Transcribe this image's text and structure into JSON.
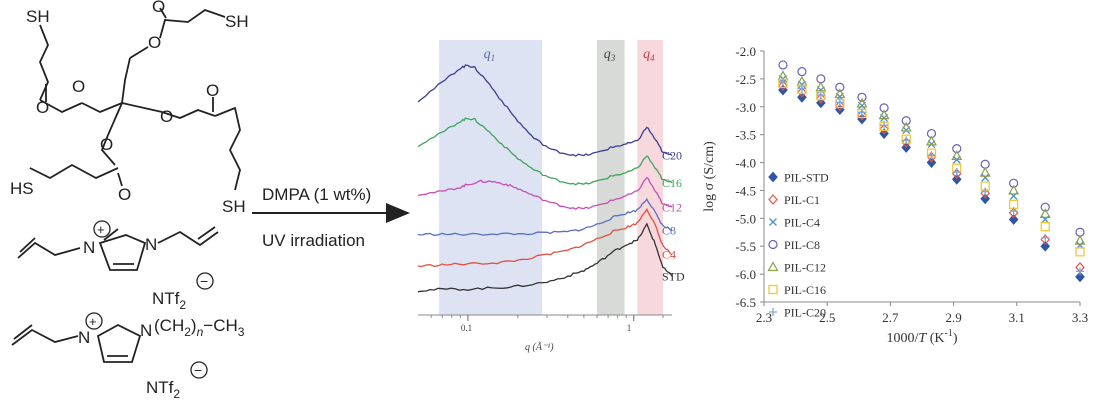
{
  "scheme": {
    "tetrathiol_labels": {
      "sh": "SH",
      "hs": "HS",
      "o": "O"
    },
    "monomer1": {
      "plus": "+",
      "n": "N",
      "counterion": "NTf",
      "counterion_sub": "2",
      "minus": "−"
    },
    "monomer2": {
      "plus": "+",
      "n": "N",
      "chain_a": "(CH",
      "chain_sub1": "2",
      "chain_b": ")",
      "chain_n": "n",
      "chain_c": "−CH",
      "chain_sub2": "3",
      "counterion": "NTf",
      "counterion_sub": "2",
      "minus": "−"
    },
    "arrow_top": "DMPA (1 wt%)",
    "arrow_bottom": "UV irradiation"
  },
  "chart_data": [
    {
      "type": "line",
      "title": "",
      "xlabel": "q (Å⁻¹)",
      "ylabel": "",
      "xscale": "log",
      "xlim": [
        0.05,
        1.7
      ],
      "xticks": [
        {
          "v": 0.1,
          "label": "0.1"
        },
        {
          "v": 1,
          "label": "1"
        }
      ],
      "bands": [
        {
          "name": "q1",
          "label": "q",
          "sub": "1",
          "from": 0.067,
          "to": 0.28,
          "color": "#dde3f3",
          "text": "#5b6aa8"
        },
        {
          "name": "q3",
          "label": "q",
          "sub": "3",
          "from": 0.6,
          "to": 0.88,
          "color": "#d7dad7",
          "text": "#444444"
        },
        {
          "name": "q4",
          "label": "q",
          "sub": "4",
          "from": 1.05,
          "to": 1.5,
          "color": "#f7d8dd",
          "text": "#c63b52"
        }
      ],
      "series": [
        {
          "name": "C20",
          "color": "#3b3f8f",
          "offset": 4.7,
          "x": [
            0.05,
            0.07,
            0.09,
            0.1,
            0.11,
            0.13,
            0.16,
            0.2,
            0.25,
            0.32,
            0.4,
            0.5,
            0.6,
            0.75,
            0.9,
            1.05,
            1.2,
            1.35,
            1.5,
            1.7
          ],
          "y": [
            1.9,
            2.55,
            3.05,
            3.15,
            3.05,
            2.6,
            1.9,
            1.2,
            0.6,
            0.2,
            0.05,
            0.0,
            0.1,
            0.3,
            0.4,
            0.5,
            1.0,
            0.55,
            0.1,
            0.0
          ]
        },
        {
          "name": "C16",
          "color": "#3ca65a",
          "offset": 3.75,
          "x": [
            0.05,
            0.07,
            0.09,
            0.1,
            0.11,
            0.13,
            0.16,
            0.2,
            0.25,
            0.32,
            0.4,
            0.5,
            0.6,
            0.75,
            0.9,
            1.05,
            1.2,
            1.35,
            1.5,
            1.7
          ],
          "y": [
            1.3,
            1.75,
            2.15,
            2.25,
            2.2,
            1.85,
            1.35,
            0.85,
            0.45,
            0.15,
            0.0,
            -0.05,
            0.05,
            0.25,
            0.35,
            0.5,
            0.95,
            0.5,
            0.1,
            0.0
          ]
        },
        {
          "name": "C12",
          "color": "#c54fb5",
          "offset": 2.85,
          "x": [
            0.05,
            0.07,
            0.09,
            0.1,
            0.12,
            0.14,
            0.17,
            0.2,
            0.25,
            0.32,
            0.4,
            0.5,
            0.6,
            0.75,
            0.9,
            1.05,
            1.2,
            1.35,
            1.5,
            1.7
          ],
          "y": [
            0.5,
            0.6,
            0.75,
            0.85,
            0.95,
            0.95,
            0.85,
            0.7,
            0.45,
            0.2,
            0.05,
            0.0,
            0.1,
            0.3,
            0.45,
            0.6,
            1.1,
            0.6,
            0.15,
            0.05
          ]
        },
        {
          "name": "C8",
          "color": "#5b6fc0",
          "offset": 1.95,
          "x": [
            0.05,
            0.07,
            0.1,
            0.15,
            0.2,
            0.3,
            0.4,
            0.5,
            0.6,
            0.75,
            0.9,
            1.05,
            1.2,
            1.35,
            1.5,
            1.7
          ],
          "y": [
            0.0,
            0.02,
            0.0,
            0.03,
            0.02,
            0.06,
            0.1,
            0.2,
            0.35,
            0.6,
            0.75,
            0.85,
            1.25,
            0.75,
            0.3,
            0.15
          ]
        },
        {
          "name": "C4",
          "color": "#e25041",
          "offset": 0.85,
          "x": [
            0.05,
            0.07,
            0.1,
            0.15,
            0.2,
            0.3,
            0.4,
            0.5,
            0.6,
            0.75,
            0.9,
            1.05,
            1.2,
            1.35,
            1.5,
            1.7
          ],
          "y": [
            0.0,
            0.05,
            0.08,
            0.12,
            0.2,
            0.4,
            0.55,
            0.75,
            0.95,
            1.2,
            1.35,
            1.5,
            2.0,
            1.4,
            0.7,
            0.4
          ]
        },
        {
          "name": "STD",
          "color": "#333333",
          "offset": 0.0,
          "x": [
            0.05,
            0.07,
            0.1,
            0.15,
            0.2,
            0.3,
            0.4,
            0.5,
            0.6,
            0.75,
            0.9,
            1.05,
            1.2,
            1.35,
            1.5,
            1.7
          ],
          "y": [
            0.0,
            0.05,
            0.05,
            0.1,
            0.15,
            0.3,
            0.5,
            0.7,
            0.95,
            1.35,
            1.6,
            1.75,
            2.3,
            1.6,
            0.8,
            0.5
          ]
        }
      ]
    },
    {
      "type": "scatter",
      "title": "",
      "xlabel_main": "1000/",
      "xlabel_italic": "T",
      "xlabel_unit": " (K",
      "xlabel_exp": "-1",
      "xlabel_close": ")",
      "ylabel": "log σ (S/cm)",
      "xlim": [
        2.3,
        3.3
      ],
      "ylim": [
        -6.5,
        -2.0
      ],
      "xticks": [
        "2.3",
        "2.5",
        "2.7",
        "2.9",
        "3.1",
        "3.3"
      ],
      "yticks": [
        "-2.0",
        "-2.5",
        "-3.0",
        "-3.5",
        "-4.0",
        "-4.5",
        "-5.0",
        "-5.5",
        "-6.0",
        "-6.5"
      ],
      "legend_position": "bottom-left",
      "x": [
        2.36,
        2.42,
        2.48,
        2.54,
        2.61,
        2.68,
        2.75,
        2.83,
        2.91,
        3.0,
        3.09,
        3.19,
        3.3
      ],
      "series": [
        {
          "name": "PIL-STD",
          "marker": "diamond",
          "color": "#2f55a4",
          "filled": true,
          "y": [
            -2.7,
            -2.83,
            -2.93,
            -3.05,
            -3.22,
            -3.48,
            -3.73,
            -4.0,
            -4.3,
            -4.65,
            -5.02,
            -5.5,
            -6.05
          ]
        },
        {
          "name": "PIL-C1",
          "marker": "diamond",
          "color": "#e0574a",
          "filled": false,
          "y": [
            -2.62,
            -2.74,
            -2.85,
            -2.98,
            -3.15,
            -3.4,
            -3.64,
            -3.9,
            -4.2,
            -4.55,
            -4.9,
            -5.38,
            -5.88
          ]
        },
        {
          "name": "PIL-C4",
          "marker": "x",
          "color": "#4a8fd0",
          "filled": false,
          "y": [
            -2.5,
            -2.6,
            -2.7,
            -2.82,
            -2.98,
            -3.2,
            -3.42,
            -3.67,
            -3.95,
            -4.27,
            -4.6,
            -5.02,
            -5.48
          ]
        },
        {
          "name": "PIL-C8",
          "marker": "circle",
          "color": "#6a5fb8",
          "filled": false,
          "y": [
            -2.25,
            -2.37,
            -2.5,
            -2.65,
            -2.83,
            -3.02,
            -3.25,
            -3.48,
            -3.75,
            -4.03,
            -4.37,
            -4.8,
            -5.25
          ]
        },
        {
          "name": "PIL-C12",
          "marker": "triangle",
          "color": "#8aa048",
          "filled": false,
          "y": [
            -2.45,
            -2.55,
            -2.65,
            -2.77,
            -2.94,
            -3.15,
            -3.37,
            -3.62,
            -3.88,
            -4.18,
            -4.5,
            -4.92,
            -5.4
          ]
        },
        {
          "name": "PIL-C16",
          "marker": "square",
          "color": "#f2c832",
          "filled": false,
          "y": [
            -2.58,
            -2.69,
            -2.8,
            -2.94,
            -3.12,
            -3.35,
            -3.58,
            -3.83,
            -4.1,
            -4.42,
            -4.75,
            -5.15,
            -5.6
          ]
        },
        {
          "name": "PIL-C20",
          "marker": "plus",
          "color": "#7fa8e0",
          "filled": false,
          "y": [
            -2.55,
            -2.67,
            -2.79,
            -2.92,
            -3.1,
            -3.33,
            -3.6,
            -3.87,
            -4.17,
            -4.52,
            -4.87,
            -5.35,
            -5.95
          ]
        }
      ]
    }
  ]
}
